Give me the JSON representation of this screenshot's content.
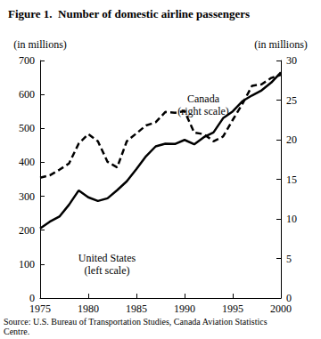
{
  "chart_data": {
    "type": "line",
    "title": "Figure 1.  Number of domestic airline passengers",
    "ylabel": "(in millions)",
    "y2label": "(in millions)",
    "annotations": [
      "Canada\n(right scale)",
      "United States\n(left scale)"
    ],
    "source": "Source: U.S. Bureau of Transportation Studies, Canada Aviation Statistics\nCentre.",
    "x": [
      1975,
      1976,
      1977,
      1978,
      1979,
      1980,
      1981,
      1982,
      1983,
      1984,
      1985,
      1986,
      1987,
      1988,
      1989,
      1990,
      1991,
      1992,
      1993,
      1994,
      1995,
      1996,
      1997,
      1998,
      1999,
      2000
    ],
    "series": [
      {
        "name": "United States",
        "color": "#000000",
        "line_style": "solid",
        "marker": "none",
        "values": [
          205,
          225,
          240,
          275,
          317,
          297,
          286,
          294,
          318,
          344,
          380,
          418,
          447,
          455,
          454,
          466,
          453,
          474,
          488,
          530,
          550,
          580,
          597,
          612,
          635,
          665
        ]
      },
      {
        "name": "Canada",
        "color": "#000000",
        "line_style": "dashed",
        "marker": "none",
        "axis": "y2",
        "values": [
          15.2,
          15.5,
          16.2,
          17.0,
          19.5,
          20.7,
          19.8,
          17.2,
          16.5,
          19.8,
          20.8,
          21.8,
          22.2,
          23.5,
          23.4,
          23.6,
          20.9,
          20.7,
          19.8,
          20.4,
          22.5,
          24.5,
          26.8,
          27.0,
          27.8,
          28.2
        ]
      }
    ],
    "xlim": [
      1975,
      2000
    ],
    "xticks": [
      1975,
      1980,
      1985,
      1990,
      1995,
      2000
    ],
    "ylim": [
      0,
      700
    ],
    "yticks": [
      0,
      100,
      200,
      300,
      400,
      500,
      600,
      700
    ],
    "y2lim": [
      0,
      30
    ],
    "y2ticks": [
      0,
      5,
      10,
      15,
      20,
      25,
      30
    ],
    "grid": false
  }
}
